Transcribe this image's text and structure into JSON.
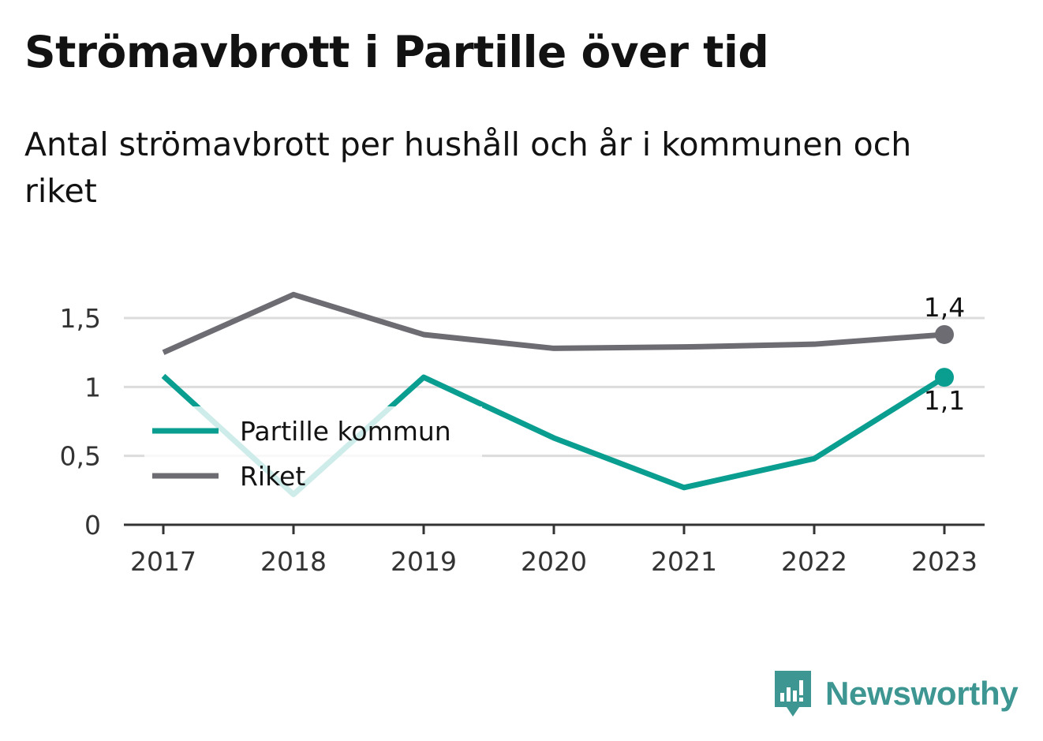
{
  "title": "Strömavbrott i Partille över tid",
  "subtitle": "Antal strömavbrott per hushåll och år i kommunen och riket",
  "brand": {
    "name": "Newsworthy",
    "icon": "bar-chart-speech-bubble-icon",
    "color": "#3d9692"
  },
  "chart_data": {
    "type": "line",
    "x": [
      "2017",
      "2018",
      "2019",
      "2020",
      "2021",
      "2022",
      "2023"
    ],
    "y_ticks": [
      "0",
      "0,5",
      "1",
      "1,5"
    ],
    "y_tick_values": [
      0,
      0.5,
      1,
      1.5
    ],
    "ylim": [
      0,
      1.5
    ],
    "grid": true,
    "legend_position": "left",
    "series": [
      {
        "name": "Partille kommun",
        "color": "#0a9e91",
        "values": [
          1.08,
          0.22,
          1.07,
          0.63,
          0.27,
          0.48,
          1.07
        ],
        "end_label": "1,1"
      },
      {
        "name": "Riket",
        "color": "#6d6c73",
        "values": [
          1.25,
          1.67,
          1.38,
          1.28,
          1.29,
          1.31,
          1.38
        ],
        "end_label": "1,4"
      }
    ]
  }
}
